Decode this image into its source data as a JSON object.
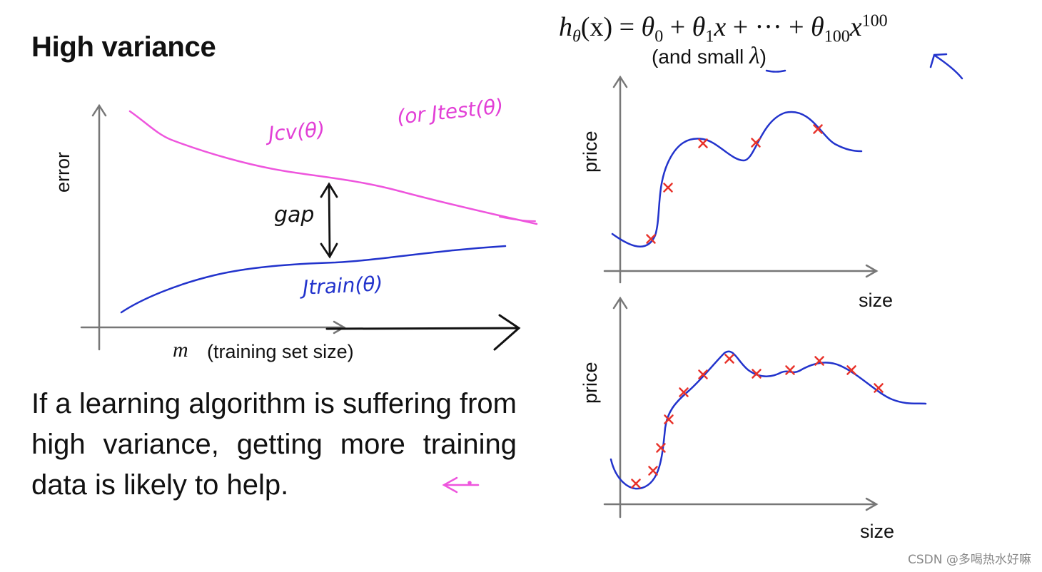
{
  "slide": {
    "title": "High variance",
    "statement": "If a learning algorithm is suffering from high variance, getting more training data is likely to help."
  },
  "hypothesis": {
    "lhs": "h",
    "lhs_sub": "θ",
    "arg": "(x)",
    "rhs_eq": " = ",
    "t0": "θ",
    "t0_sub": "0",
    "plus1": " + ",
    "t1": "θ",
    "t1_sub": "1",
    "t1_var": "x",
    "plus2": " + ··· + ",
    "tn": "θ",
    "tn_sub": "100",
    "tn_var": "x",
    "tn_sup": "100",
    "note_prefix": "(and small ",
    "note_lambda": "λ",
    "note_suffix": ")"
  },
  "learning_curve": {
    "y_label": "error",
    "x_label_var": "m",
    "x_label_text": "(training set size)",
    "cv_label": "Jcv(θ)",
    "test_label": "(or Jtest(θ)",
    "train_label": "Jtrain(θ)",
    "gap_label": "gap",
    "colors": {
      "cv": "#ee55dd",
      "train": "#2233cc",
      "annotation": "#111111"
    }
  },
  "fit_plots": [
    {
      "y_label": "price",
      "x_label": "size",
      "marker_color": "#e8322a",
      "curve_color": "#2233cc"
    },
    {
      "y_label": "price",
      "x_label": "size",
      "marker_color": "#e8322a",
      "curve_color": "#2233cc"
    }
  ],
  "watermark": "CSDN @多喝热水好嘛"
}
